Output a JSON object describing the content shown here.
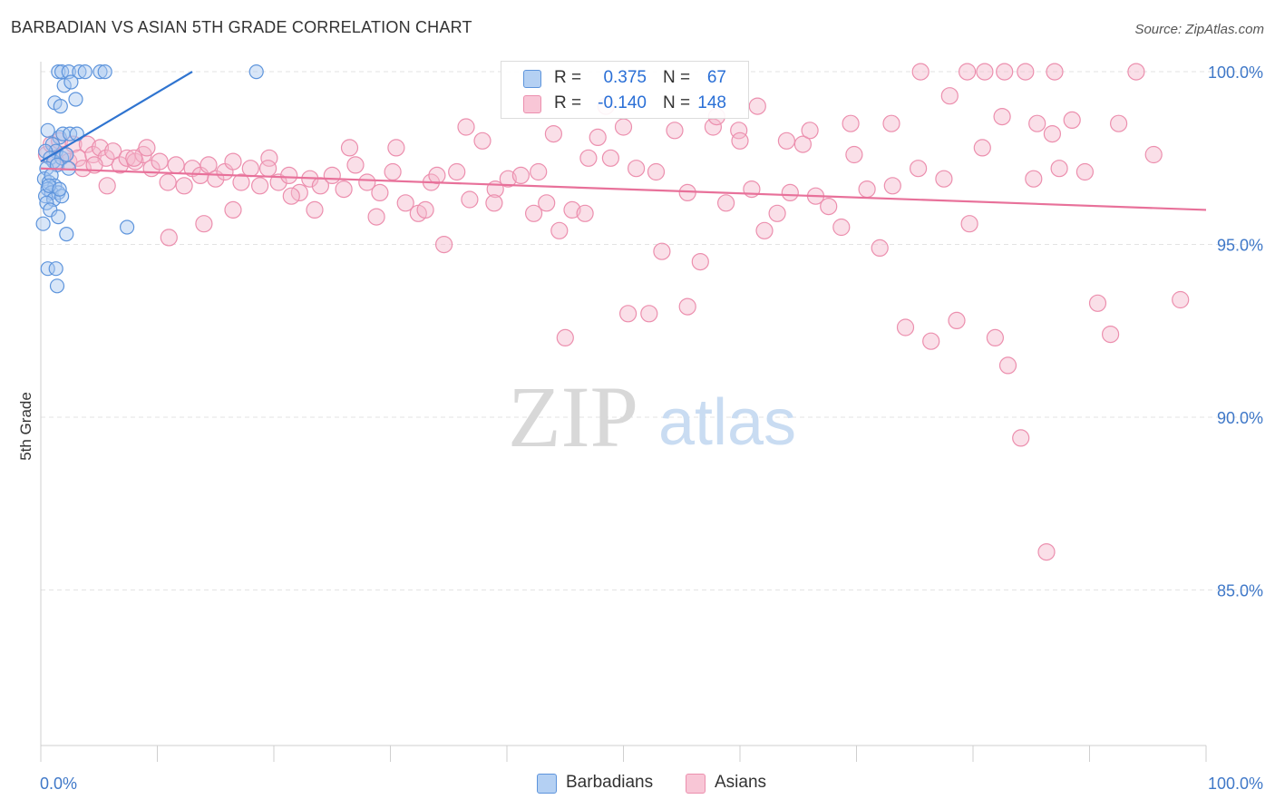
{
  "title": "BARBADIAN VS ASIAN 5TH GRADE CORRELATION CHART",
  "source": "Source: ZipAtlas.com",
  "watermark": {
    "zip": "ZIP",
    "atlas": "atlas"
  },
  "colors": {
    "blue_fill": "#a9c8f0",
    "blue_stroke": "#5d94dc",
    "blue_line": "#2f74d0",
    "pink_fill": "#f5b9cd",
    "pink_stroke": "#ec8fae",
    "pink_line": "#e8719a",
    "axis_text": "#3f78c8",
    "grid": "#e3e3e3"
  },
  "legend_top": [
    {
      "series": "Barbadians",
      "r_label": "R =",
      "r_value": "0.375",
      "n_label": "N =",
      "n_value": "67"
    },
    {
      "series": "Asians",
      "r_label": "R =",
      "r_value": "-0.140",
      "n_label": "N =",
      "n_value": "148"
    }
  ],
  "legend_bottom": [
    "Barbadians",
    "Asians"
  ],
  "chart_data": {
    "type": "scatter",
    "ylabel": "5th Grade",
    "xlabel": "",
    "xlim": [
      0,
      100
    ],
    "ylim": [
      80.5,
      100.5
    ],
    "x_tick_labels": [
      "0.0%",
      "100.0%"
    ],
    "y_ticks": [
      85,
      90,
      95,
      100
    ],
    "y_tick_labels": [
      "85.0%",
      "90.0%",
      "95.0%",
      "100.0%"
    ],
    "grid": "horizontal dashed",
    "series": [
      {
        "name": "Barbadians",
        "trend": [
          [
            0.0,
            97.4
          ],
          [
            13.0,
            100.0
          ]
        ],
        "points": [
          [
            1.5,
            100.0
          ],
          [
            1.8,
            100.0
          ],
          [
            2.4,
            100.0
          ],
          [
            3.3,
            100.0
          ],
          [
            3.8,
            100.0
          ],
          [
            5.1,
            100.0
          ],
          [
            5.5,
            100.0
          ],
          [
            18.5,
            100.0
          ],
          [
            2.0,
            99.6
          ],
          [
            2.6,
            99.7
          ],
          [
            3.0,
            99.2
          ],
          [
            1.2,
            99.1
          ],
          [
            1.7,
            99.0
          ],
          [
            0.6,
            98.3
          ],
          [
            1.6,
            98.1
          ],
          [
            1.9,
            98.2
          ],
          [
            2.5,
            98.2
          ],
          [
            3.1,
            98.2
          ],
          [
            1.0,
            97.9
          ],
          [
            1.3,
            97.7
          ],
          [
            0.4,
            97.7
          ],
          [
            0.8,
            97.5
          ],
          [
            1.1,
            97.4
          ],
          [
            1.8,
            97.5
          ],
          [
            2.2,
            97.6
          ],
          [
            0.5,
            97.2
          ],
          [
            1.4,
            97.3
          ],
          [
            2.4,
            97.2
          ],
          [
            0.3,
            96.9
          ],
          [
            0.7,
            96.8
          ],
          [
            0.9,
            97.0
          ],
          [
            1.2,
            96.7
          ],
          [
            0.6,
            96.6
          ],
          [
            0.9,
            96.5
          ],
          [
            1.5,
            96.5
          ],
          [
            0.4,
            96.4
          ],
          [
            1.1,
            96.3
          ],
          [
            1.8,
            96.4
          ],
          [
            0.5,
            96.2
          ],
          [
            0.8,
            96.0
          ],
          [
            1.5,
            95.8
          ],
          [
            0.2,
            95.6
          ],
          [
            2.2,
            95.3
          ],
          [
            7.4,
            95.5
          ],
          [
            0.6,
            94.3
          ],
          [
            1.3,
            94.3
          ],
          [
            1.4,
            93.8
          ],
          [
            0.7,
            96.7
          ],
          [
            1.6,
            96.6
          ]
        ]
      },
      {
        "name": "Asians",
        "trend": [
          [
            0.0,
            97.2
          ],
          [
            100.0,
            96.0
          ]
        ],
        "points": [
          [
            0.5,
            97.6
          ],
          [
            0.9,
            97.9
          ],
          [
            1.3,
            97.4
          ],
          [
            1.6,
            98.0
          ],
          [
            2.0,
            97.6
          ],
          [
            2.4,
            97.4
          ],
          [
            2.8,
            97.9
          ],
          [
            3.2,
            97.5
          ],
          [
            3.6,
            97.2
          ],
          [
            4.0,
            97.9
          ],
          [
            4.5,
            97.6
          ],
          [
            5.1,
            97.8
          ],
          [
            5.6,
            97.5
          ],
          [
            6.2,
            97.7
          ],
          [
            6.8,
            97.3
          ],
          [
            7.4,
            97.5
          ],
          [
            8.1,
            97.4
          ],
          [
            8.8,
            97.6
          ],
          [
            9.5,
            97.2
          ],
          [
            10.2,
            97.4
          ],
          [
            10.9,
            96.8
          ],
          [
            11.6,
            97.3
          ],
          [
            12.3,
            96.7
          ],
          [
            13.0,
            97.2
          ],
          [
            13.7,
            97.0
          ],
          [
            14.4,
            97.3
          ],
          [
            15.0,
            96.9
          ],
          [
            15.8,
            97.1
          ],
          [
            16.5,
            97.4
          ],
          [
            17.2,
            96.8
          ],
          [
            18.0,
            97.2
          ],
          [
            18.8,
            96.7
          ],
          [
            19.6,
            97.5
          ],
          [
            20.4,
            96.8
          ],
          [
            21.3,
            97.0
          ],
          [
            22.2,
            96.5
          ],
          [
            23.1,
            96.9
          ],
          [
            24.0,
            96.7
          ],
          [
            25.0,
            97.0
          ],
          [
            26.0,
            96.6
          ],
          [
            27.0,
            97.3
          ],
          [
            28.0,
            96.8
          ],
          [
            29.1,
            96.5
          ],
          [
            30.2,
            97.1
          ],
          [
            31.3,
            96.2
          ],
          [
            32.4,
            95.9
          ],
          [
            33.5,
            96.8
          ],
          [
            34.6,
            95.0
          ],
          [
            35.7,
            97.1
          ],
          [
            36.8,
            96.3
          ],
          [
            37.9,
            98.0
          ],
          [
            39.0,
            96.6
          ],
          [
            40.1,
            96.9
          ],
          [
            41.2,
            97.0
          ],
          [
            42.3,
            95.9
          ],
          [
            43.4,
            96.2
          ],
          [
            44.5,
            95.4
          ],
          [
            45.6,
            96.0
          ],
          [
            46.7,
            95.9
          ],
          [
            47.8,
            98.1
          ],
          [
            48.9,
            97.5
          ],
          [
            50.0,
            98.4
          ],
          [
            51.1,
            97.2
          ],
          [
            52.2,
            93.0
          ],
          [
            53.3,
            94.8
          ],
          [
            54.4,
            98.3
          ],
          [
            55.5,
            96.5
          ],
          [
            56.6,
            94.5
          ],
          [
            57.7,
            98.4
          ],
          [
            58.8,
            96.2
          ],
          [
            59.9,
            98.3
          ],
          [
            61.0,
            96.6
          ],
          [
            62.1,
            95.4
          ],
          [
            63.2,
            95.9
          ],
          [
            64.3,
            96.5
          ],
          [
            65.4,
            97.9
          ],
          [
            66.5,
            96.4
          ],
          [
            67.6,
            96.1
          ],
          [
            68.7,
            95.5
          ],
          [
            69.8,
            97.6
          ],
          [
            70.9,
            96.6
          ],
          [
            72.0,
            94.9
          ],
          [
            73.1,
            96.7
          ],
          [
            74.2,
            92.6
          ],
          [
            75.3,
            97.2
          ],
          [
            76.4,
            92.2
          ],
          [
            77.5,
            96.9
          ],
          [
            78.6,
            92.8
          ],
          [
            79.7,
            95.6
          ],
          [
            80.8,
            97.8
          ],
          [
            81.9,
            92.3
          ],
          [
            83.0,
            91.5
          ],
          [
            84.1,
            89.4
          ],
          [
            85.2,
            96.9
          ],
          [
            86.3,
            86.1
          ],
          [
            87.4,
            97.2
          ],
          [
            88.5,
            98.6
          ],
          [
            89.6,
            97.1
          ],
          [
            90.7,
            93.3
          ],
          [
            91.8,
            92.4
          ],
          [
            60.0,
            98.0
          ],
          [
            55.5,
            93.2
          ],
          [
            50.4,
            93.0
          ],
          [
            45.0,
            92.3
          ],
          [
            30.5,
            97.8
          ],
          [
            34.0,
            97.0
          ],
          [
            21.5,
            96.4
          ],
          [
            16.5,
            96.0
          ],
          [
            14.0,
            95.6
          ],
          [
            11.0,
            95.2
          ],
          [
            5.7,
            96.7
          ],
          [
            9.1,
            97.8
          ],
          [
            8.0,
            97.5
          ],
          [
            4.6,
            97.3
          ],
          [
            19.5,
            97.2
          ],
          [
            23.5,
            96.0
          ],
          [
            26.5,
            97.8
          ],
          [
            28.8,
            95.8
          ],
          [
            33.0,
            96.0
          ],
          [
            36.5,
            98.4
          ],
          [
            38.9,
            96.2
          ],
          [
            42.7,
            97.1
          ],
          [
            44.0,
            98.2
          ],
          [
            47.0,
            97.5
          ],
          [
            52.8,
            97.1
          ],
          [
            48.5,
            99.0
          ],
          [
            58.0,
            98.7
          ],
          [
            61.5,
            99.0
          ],
          [
            64.0,
            98.0
          ],
          [
            66.0,
            98.3
          ],
          [
            69.5,
            98.5
          ],
          [
            73.0,
            98.5
          ],
          [
            78.0,
            99.3
          ],
          [
            82.5,
            98.7
          ],
          [
            85.5,
            98.5
          ],
          [
            86.8,
            98.2
          ],
          [
            92.5,
            98.5
          ],
          [
            75.5,
            100.0
          ],
          [
            79.5,
            100.0
          ],
          [
            81.0,
            100.0
          ],
          [
            82.7,
            100.0
          ],
          [
            84.5,
            100.0
          ],
          [
            87.0,
            100.0
          ],
          [
            94.0,
            100.0
          ],
          [
            97.8,
            93.4
          ],
          [
            95.5,
            97.6
          ]
        ]
      }
    ]
  }
}
